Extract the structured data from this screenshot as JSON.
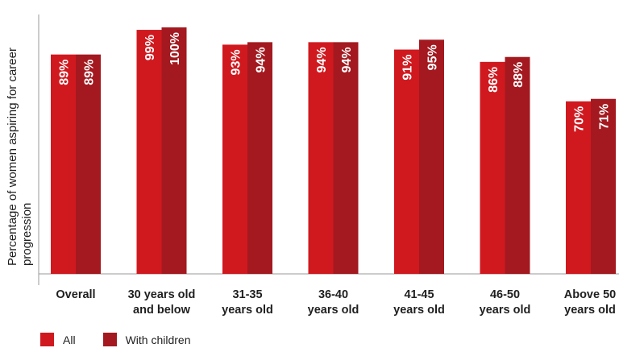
{
  "chart_data": {
    "type": "bar",
    "ylabel": "Percentage of women aspiring for career progression",
    "ylim": [
      0,
      100
    ],
    "grid": false,
    "legend_position": "bottom-left",
    "categories": [
      [
        "Overall"
      ],
      [
        "30 years old",
        "and below"
      ],
      [
        "31-35",
        "years old"
      ],
      [
        "36-40",
        "years old"
      ],
      [
        "41-45",
        "years old"
      ],
      [
        "46-50",
        "years old"
      ],
      [
        "Above 50",
        "years old"
      ]
    ],
    "series": [
      {
        "name": "All",
        "color": "#d0191f",
        "values": [
          89,
          99,
          93,
          94,
          91,
          86,
          70
        ],
        "labels": [
          "89%",
          "99%",
          "93%",
          "94%",
          "91%",
          "86%",
          "70%"
        ]
      },
      {
        "name": "With children",
        "color": "#a3191f",
        "values": [
          89,
          100,
          94,
          94,
          95,
          88,
          71
        ],
        "labels": [
          "89%",
          "100%",
          "94%",
          "94%",
          "95%",
          "88%",
          "71%"
        ]
      }
    ]
  }
}
